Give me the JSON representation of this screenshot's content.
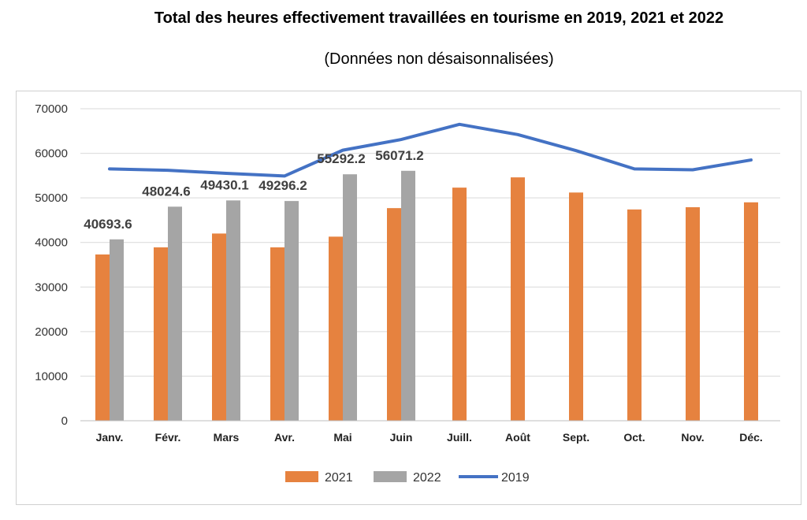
{
  "chart_data": {
    "type": "bar",
    "title": "Total des heures effectivement travaillées en tourisme en 2019, 2021 et 2022",
    "subtitle": "(Données non désaisonnalisées)",
    "categories": [
      "Janv.",
      "Févr.",
      "Mars",
      "Avr.",
      "Mai",
      "Juin",
      "Juill.",
      "Août",
      "Sept.",
      "Oct.",
      "Nov.",
      "Déc."
    ],
    "ylim": [
      0,
      70000
    ],
    "yticks": [
      0,
      10000,
      20000,
      30000,
      40000,
      50000,
      60000,
      70000
    ],
    "grid": true,
    "legend_position": "bottom",
    "series": [
      {
        "name": "2021",
        "kind": "bar",
        "color": "#E6823F",
        "values": [
          37300,
          38900,
          42000,
          38900,
          41300,
          47700,
          52300,
          54600,
          51200,
          47400,
          47900,
          49000
        ]
      },
      {
        "name": "2022",
        "kind": "bar",
        "color": "#A5A5A5",
        "values": [
          40693.6,
          48024.6,
          49430.1,
          49296.2,
          55292.2,
          56071.2,
          null,
          null,
          null,
          null,
          null,
          null
        ]
      },
      {
        "name": "2019",
        "kind": "line",
        "color": "#4472C4",
        "values": [
          56500,
          56200,
          55500,
          54900,
          60700,
          63100,
          66500,
          64200,
          60600,
          56500,
          56300,
          58500
        ]
      }
    ],
    "data_labels": [
      "40693.6",
      "48024.6",
      "49430.1",
      "49296.2",
      "55292.2",
      "56071.2"
    ]
  }
}
